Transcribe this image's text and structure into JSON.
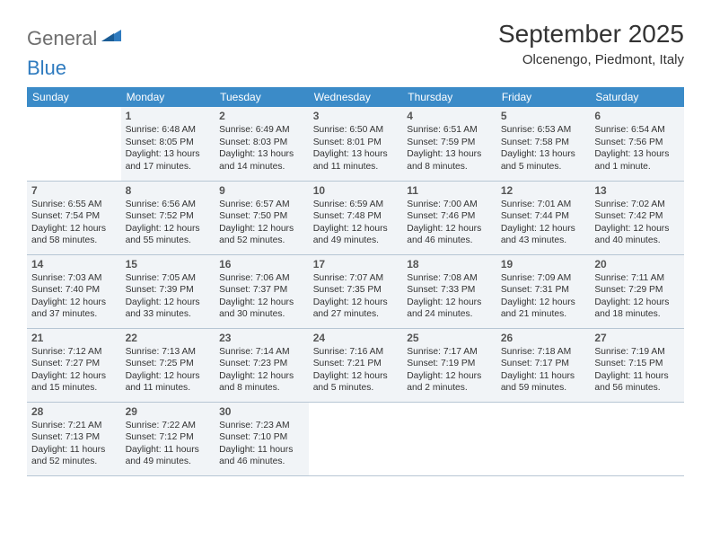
{
  "brand": {
    "part1": "General",
    "part2": "Blue"
  },
  "title": "September 2025",
  "location": "Olcenengo, Piedmont, Italy",
  "colors": {
    "header_bg": "#3b8bc8",
    "header_text": "#ffffff",
    "cell_bg": "#f1f4f7",
    "border": "#b7c6d4",
    "text": "#333333",
    "logo_gray": "#6e6e6e",
    "logo_blue": "#2f7bbf"
  },
  "weekdays": [
    "Sunday",
    "Monday",
    "Tuesday",
    "Wednesday",
    "Thursday",
    "Friday",
    "Saturday"
  ],
  "grid": [
    [
      null,
      {
        "n": "1",
        "sr": "6:48 AM",
        "ss": "8:05 PM",
        "dl": "13 hours and 17 minutes."
      },
      {
        "n": "2",
        "sr": "6:49 AM",
        "ss": "8:03 PM",
        "dl": "13 hours and 14 minutes."
      },
      {
        "n": "3",
        "sr": "6:50 AM",
        "ss": "8:01 PM",
        "dl": "13 hours and 11 minutes."
      },
      {
        "n": "4",
        "sr": "6:51 AM",
        "ss": "7:59 PM",
        "dl": "13 hours and 8 minutes."
      },
      {
        "n": "5",
        "sr": "6:53 AM",
        "ss": "7:58 PM",
        "dl": "13 hours and 5 minutes."
      },
      {
        "n": "6",
        "sr": "6:54 AM",
        "ss": "7:56 PM",
        "dl": "13 hours and 1 minute."
      }
    ],
    [
      {
        "n": "7",
        "sr": "6:55 AM",
        "ss": "7:54 PM",
        "dl": "12 hours and 58 minutes."
      },
      {
        "n": "8",
        "sr": "6:56 AM",
        "ss": "7:52 PM",
        "dl": "12 hours and 55 minutes."
      },
      {
        "n": "9",
        "sr": "6:57 AM",
        "ss": "7:50 PM",
        "dl": "12 hours and 52 minutes."
      },
      {
        "n": "10",
        "sr": "6:59 AM",
        "ss": "7:48 PM",
        "dl": "12 hours and 49 minutes."
      },
      {
        "n": "11",
        "sr": "7:00 AM",
        "ss": "7:46 PM",
        "dl": "12 hours and 46 minutes."
      },
      {
        "n": "12",
        "sr": "7:01 AM",
        "ss": "7:44 PM",
        "dl": "12 hours and 43 minutes."
      },
      {
        "n": "13",
        "sr": "7:02 AM",
        "ss": "7:42 PM",
        "dl": "12 hours and 40 minutes."
      }
    ],
    [
      {
        "n": "14",
        "sr": "7:03 AM",
        "ss": "7:40 PM",
        "dl": "12 hours and 37 minutes."
      },
      {
        "n": "15",
        "sr": "7:05 AM",
        "ss": "7:39 PM",
        "dl": "12 hours and 33 minutes."
      },
      {
        "n": "16",
        "sr": "7:06 AM",
        "ss": "7:37 PM",
        "dl": "12 hours and 30 minutes."
      },
      {
        "n": "17",
        "sr": "7:07 AM",
        "ss": "7:35 PM",
        "dl": "12 hours and 27 minutes."
      },
      {
        "n": "18",
        "sr": "7:08 AM",
        "ss": "7:33 PM",
        "dl": "12 hours and 24 minutes."
      },
      {
        "n": "19",
        "sr": "7:09 AM",
        "ss": "7:31 PM",
        "dl": "12 hours and 21 minutes."
      },
      {
        "n": "20",
        "sr": "7:11 AM",
        "ss": "7:29 PM",
        "dl": "12 hours and 18 minutes."
      }
    ],
    [
      {
        "n": "21",
        "sr": "7:12 AM",
        "ss": "7:27 PM",
        "dl": "12 hours and 15 minutes."
      },
      {
        "n": "22",
        "sr": "7:13 AM",
        "ss": "7:25 PM",
        "dl": "12 hours and 11 minutes."
      },
      {
        "n": "23",
        "sr": "7:14 AM",
        "ss": "7:23 PM",
        "dl": "12 hours and 8 minutes."
      },
      {
        "n": "24",
        "sr": "7:16 AM",
        "ss": "7:21 PM",
        "dl": "12 hours and 5 minutes."
      },
      {
        "n": "25",
        "sr": "7:17 AM",
        "ss": "7:19 PM",
        "dl": "12 hours and 2 minutes."
      },
      {
        "n": "26",
        "sr": "7:18 AM",
        "ss": "7:17 PM",
        "dl": "11 hours and 59 minutes."
      },
      {
        "n": "27",
        "sr": "7:19 AM",
        "ss": "7:15 PM",
        "dl": "11 hours and 56 minutes."
      }
    ],
    [
      {
        "n": "28",
        "sr": "7:21 AM",
        "ss": "7:13 PM",
        "dl": "11 hours and 52 minutes."
      },
      {
        "n": "29",
        "sr": "7:22 AM",
        "ss": "7:12 PM",
        "dl": "11 hours and 49 minutes."
      },
      {
        "n": "30",
        "sr": "7:23 AM",
        "ss": "7:10 PM",
        "dl": "11 hours and 46 minutes."
      },
      null,
      null,
      null,
      null
    ]
  ],
  "labels": {
    "sunrise": "Sunrise:",
    "sunset": "Sunset:",
    "daylight": "Daylight:"
  }
}
